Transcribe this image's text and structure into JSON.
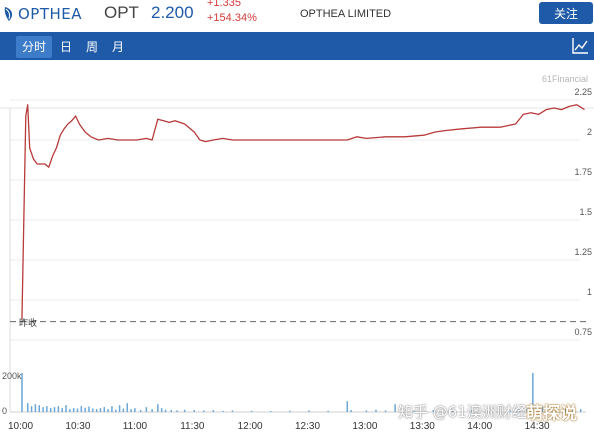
{
  "header": {
    "logo_text": "OPTHEA",
    "ticker": "OPT",
    "price": "2.200",
    "change_abs": "+1.335",
    "change_pct": "+154.34%",
    "company": "OPTHEA LIMITED",
    "close_label": "关注",
    "logo_icon": "opthea-leaf-icon"
  },
  "tabs": [
    {
      "label": "分时",
      "active": true
    },
    {
      "label": "日",
      "active": false
    },
    {
      "label": "周",
      "active": false
    },
    {
      "label": "月",
      "active": false
    }
  ],
  "chart_type_icon": "line-chart-icon",
  "colors": {
    "brand": "#1e5aa8",
    "price_line": "#b83a3a",
    "volume_bar": "#6aa7d8",
    "up": "#d23a3a"
  },
  "watermarks": {
    "source": "61Financial",
    "zhihu": "知乎 @61澳洲财经",
    "site": "萌探说"
  },
  "chart_data": {
    "type": "line",
    "prev_close_label": "昨收",
    "prev_close": 0.865,
    "y_ticks": [
      "2.25",
      "2",
      "1.75",
      "1.5",
      "1.25",
      "1",
      "0.75"
    ],
    "ylim": [
      0.75,
      2.25
    ],
    "x_ticks": [
      "10:00",
      "10:30",
      "11:00",
      "11:30",
      "12:00",
      "12:30",
      "13:00",
      "13:30",
      "14:00",
      "14:30"
    ],
    "volume_ticks": [
      "200k",
      "0"
    ],
    "price_series": [
      [
        "10:00",
        0.88
      ],
      [
        "10:00",
        0.9
      ],
      [
        "10:02",
        2.15
      ],
      [
        "10:03",
        2.22
      ],
      [
        "10:04",
        1.95
      ],
      [
        "10:06",
        1.88
      ],
      [
        "10:08",
        1.85
      ],
      [
        "10:12",
        1.85
      ],
      [
        "10:14",
        1.83
      ],
      [
        "10:16",
        1.9
      ],
      [
        "10:18",
        1.95
      ],
      [
        "10:20",
        2.03
      ],
      [
        "10:22",
        2.07
      ],
      [
        "10:24",
        2.1
      ],
      [
        "10:26",
        2.12
      ],
      [
        "10:28",
        2.15
      ],
      [
        "10:30",
        2.1
      ],
      [
        "10:33",
        2.05
      ],
      [
        "10:36",
        2.02
      ],
      [
        "10:40",
        2.0
      ],
      [
        "10:45",
        2.01
      ],
      [
        "10:50",
        2.0
      ],
      [
        "10:55",
        2.0
      ],
      [
        "11:00",
        2.0
      ],
      [
        "11:05",
        2.01
      ],
      [
        "11:08",
        2.0
      ],
      [
        "11:11",
        2.13
      ],
      [
        "11:14",
        2.12
      ],
      [
        "11:17",
        2.11
      ],
      [
        "11:20",
        2.12
      ],
      [
        "11:25",
        2.1
      ],
      [
        "11:30",
        2.05
      ],
      [
        "11:33",
        2.0
      ],
      [
        "11:36",
        1.99
      ],
      [
        "11:40",
        2.0
      ],
      [
        "11:45",
        2.01
      ],
      [
        "11:50",
        2.0
      ],
      [
        "12:00",
        2.0
      ],
      [
        "12:10",
        2.0
      ],
      [
        "12:20",
        2.0
      ],
      [
        "12:30",
        2.0
      ],
      [
        "12:40",
        2.0
      ],
      [
        "12:50",
        2.0
      ],
      [
        "12:55",
        2.02
      ],
      [
        "13:00",
        2.01
      ],
      [
        "13:10",
        2.02
      ],
      [
        "13:20",
        2.02
      ],
      [
        "13:30",
        2.03
      ],
      [
        "13:36",
        2.05
      ],
      [
        "13:42",
        2.06
      ],
      [
        "13:50",
        2.07
      ],
      [
        "14:00",
        2.08
      ],
      [
        "14:10",
        2.08
      ],
      [
        "14:18",
        2.1
      ],
      [
        "14:22",
        2.16
      ],
      [
        "14:26",
        2.17
      ],
      [
        "14:30",
        2.16
      ],
      [
        "14:34",
        2.19
      ],
      [
        "14:38",
        2.2
      ],
      [
        "14:42",
        2.19
      ],
      [
        "14:46",
        2.21
      ],
      [
        "14:50",
        2.22
      ],
      [
        "14:54",
        2.19
      ]
    ],
    "volume_series": [
      [
        "10:00",
        200
      ],
      [
        "10:03",
        45
      ],
      [
        "10:05",
        30
      ],
      [
        "10:07",
        40
      ],
      [
        "10:09",
        35
      ],
      [
        "10:11",
        25
      ],
      [
        "10:13",
        30
      ],
      [
        "10:15",
        20
      ],
      [
        "10:17",
        25
      ],
      [
        "10:19",
        30
      ],
      [
        "10:21",
        20
      ],
      [
        "10:23",
        35
      ],
      [
        "10:25",
        15
      ],
      [
        "10:27",
        20
      ],
      [
        "10:29",
        18
      ],
      [
        "10:31",
        30
      ],
      [
        "10:33",
        22
      ],
      [
        "10:35",
        28
      ],
      [
        "10:37",
        18
      ],
      [
        "10:39",
        15
      ],
      [
        "10:41",
        20
      ],
      [
        "10:43",
        25
      ],
      [
        "10:45",
        15
      ],
      [
        "10:47",
        30
      ],
      [
        "10:49",
        12
      ],
      [
        "10:51",
        35
      ],
      [
        "10:53",
        18
      ],
      [
        "10:55",
        45
      ],
      [
        "10:57",
        15
      ],
      [
        "10:59",
        20
      ],
      [
        "11:02",
        10
      ],
      [
        "11:05",
        25
      ],
      [
        "11:08",
        15
      ],
      [
        "11:11",
        40
      ],
      [
        "11:13",
        20
      ],
      [
        "11:15",
        12
      ],
      [
        "11:18",
        10
      ],
      [
        "11:21",
        8
      ],
      [
        "11:25",
        12
      ],
      [
        "11:30",
        10
      ],
      [
        "11:35",
        8
      ],
      [
        "11:40",
        10
      ],
      [
        "11:45",
        6
      ],
      [
        "11:50",
        8
      ],
      [
        "12:00",
        6
      ],
      [
        "12:10",
        5
      ],
      [
        "12:20",
        6
      ],
      [
        "12:30",
        8
      ],
      [
        "12:40",
        6
      ],
      [
        "12:50",
        55
      ],
      [
        "12:52",
        10
      ],
      [
        "13:00",
        8
      ],
      [
        "13:05",
        12
      ],
      [
        "13:10",
        8
      ],
      [
        "13:15",
        40
      ],
      [
        "13:20",
        10
      ],
      [
        "13:25",
        8
      ],
      [
        "13:35",
        10
      ],
      [
        "13:45",
        8
      ],
      [
        "13:55",
        10
      ],
      [
        "14:05",
        12
      ],
      [
        "14:15",
        10
      ],
      [
        "14:20",
        15
      ],
      [
        "14:24",
        18
      ],
      [
        "14:27",
        200
      ],
      [
        "14:29",
        25
      ],
      [
        "14:32",
        30
      ],
      [
        "14:36",
        20
      ],
      [
        "14:40",
        25
      ],
      [
        "14:44",
        15
      ],
      [
        "14:48",
        20
      ],
      [
        "14:52",
        15
      ]
    ],
    "volume_ylim": [
      0,
      200
    ]
  }
}
